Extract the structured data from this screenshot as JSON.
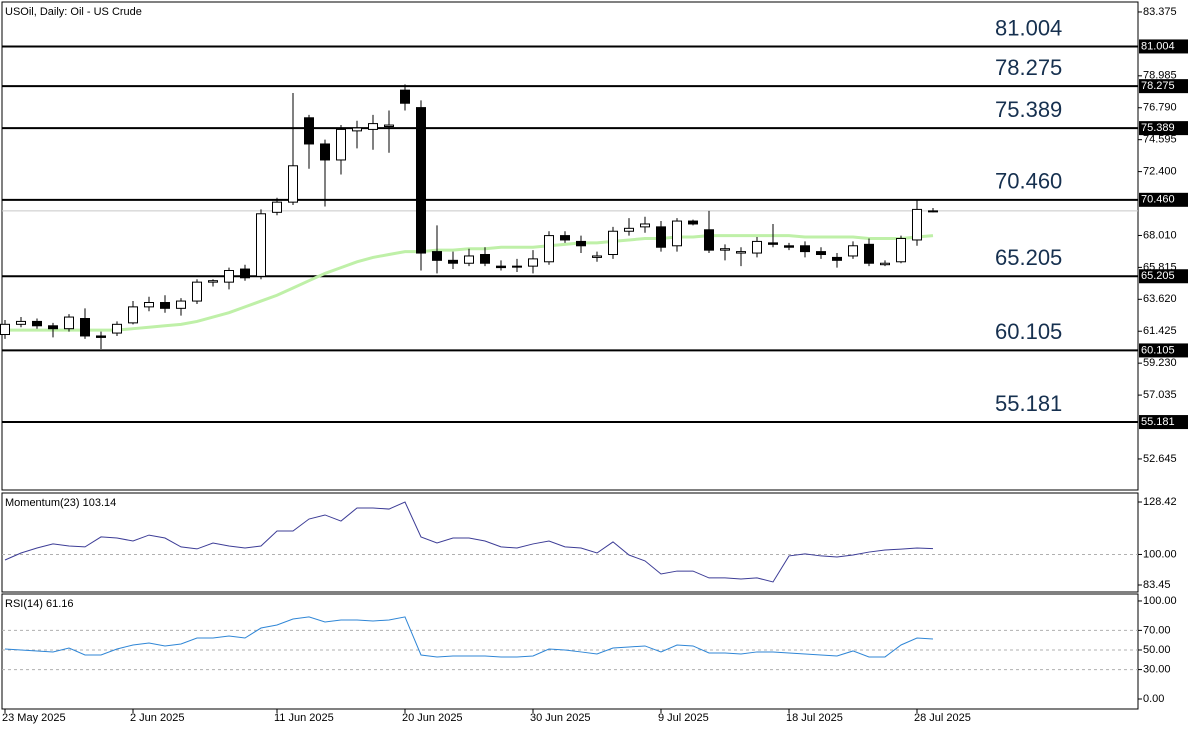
{
  "chart_data": [
    {
      "type": "candlestick",
      "title": "USOil, Daily:  Oil - US Crude",
      "categories": [
        "23 May 2025",
        null,
        null,
        null,
        null,
        null,
        null,
        null,
        "2 Jun 2025",
        null,
        null,
        null,
        null,
        null,
        null,
        null,
        null,
        "11 Jun 2025",
        null,
        null,
        null,
        null,
        null,
        null,
        null,
        "20 Jun 2025",
        null,
        null,
        null,
        null,
        null,
        null,
        null,
        "30 Jun 2025",
        null,
        null,
        null,
        null,
        null,
        null,
        null,
        "9 Jul 2025",
        null,
        null,
        null,
        null,
        null,
        null,
        null,
        "18 Jul 2025",
        null,
        null,
        null,
        null,
        null,
        null,
        null,
        "28 Jul 2025",
        null
      ],
      "open": [
        61.2,
        61.9,
        62.1,
        61.8,
        61.6,
        62.3,
        61.1,
        61.3,
        62.0,
        63.1,
        63.4,
        63.0,
        63.5,
        64.8,
        64.8,
        65.7,
        65.2,
        69.6,
        70.3,
        76.1,
        74.3,
        73.2,
        75.2,
        75.3,
        75.5,
        78.0,
        76.8,
        66.9,
        66.3,
        66.1,
        66.7,
        65.9,
        65.9,
        65.9,
        66.2,
        68.0,
        67.6,
        66.5,
        66.7,
        68.3,
        68.6,
        68.6,
        67.3,
        69.0,
        68.4,
        67.0,
        66.8,
        66.8,
        67.5,
        67.3,
        67.3,
        66.9,
        66.5,
        66.6,
        67.4,
        66.0,
        66.2,
        67.7,
        69.7
      ],
      "high": [
        62.2,
        62.4,
        62.3,
        62.0,
        62.6,
        63.0,
        61.4,
        62.1,
        63.5,
        63.8,
        63.9,
        63.7,
        65.0,
        65.0,
        65.8,
        66.0,
        69.8,
        70.6,
        77.8,
        76.3,
        74.6,
        75.6,
        75.9,
        76.3,
        76.6,
        78.4,
        77.3,
        68.7,
        66.9,
        67.1,
        67.2,
        66.3,
        66.4,
        67.0,
        68.3,
        68.3,
        68.0,
        66.9,
        68.6,
        69.2,
        69.3,
        69.0,
        69.2,
        69.1,
        69.7,
        67.4,
        67.2,
        67.9,
        68.8,
        67.5,
        67.6,
        67.2,
        66.8,
        67.6,
        67.8,
        66.3,
        68.0,
        70.5,
        69.9
      ],
      "low": [
        60.9,
        61.7,
        61.6,
        61.0,
        61.4,
        60.9,
        60.2,
        61.1,
        61.9,
        62.8,
        62.7,
        62.5,
        63.3,
        64.5,
        64.3,
        64.9,
        65.0,
        69.4,
        70.1,
        72.6,
        70.0,
        72.2,
        74.0,
        73.9,
        73.7,
        76.6,
        65.6,
        65.4,
        65.7,
        65.9,
        65.9,
        65.6,
        65.5,
        65.4,
        66.0,
        67.5,
        66.8,
        66.2,
        66.4,
        68.0,
        68.2,
        66.9,
        66.9,
        68.7,
        66.8,
        66.3,
        65.9,
        66.5,
        67.2,
        67.0,
        66.5,
        66.4,
        65.8,
        66.4,
        65.9,
        65.9,
        66.1,
        67.3,
        69.6
      ],
      "close": [
        61.9,
        62.1,
        61.8,
        61.6,
        62.4,
        61.1,
        61.0,
        61.9,
        63.1,
        63.4,
        63.0,
        63.5,
        64.8,
        64.9,
        65.6,
        65.1,
        69.5,
        70.3,
        72.8,
        74.3,
        73.2,
        75.3,
        75.4,
        75.7,
        75.6,
        77.1,
        66.8,
        66.3,
        66.1,
        66.6,
        66.1,
        65.8,
        65.9,
        66.4,
        68.0,
        67.7,
        67.3,
        66.6,
        68.3,
        68.5,
        68.8,
        67.2,
        69.0,
        68.8,
        67.0,
        67.1,
        66.9,
        67.6,
        67.4,
        67.2,
        66.9,
        66.7,
        66.3,
        67.3,
        66.1,
        66.1,
        67.8,
        69.8,
        69.7
      ],
      "ma_values": [
        61.5,
        61.5,
        61.5,
        61.5,
        61.5,
        61.5,
        61.5,
        61.5,
        61.6,
        61.7,
        61.8,
        61.9,
        62.1,
        62.4,
        62.7,
        63.1,
        63.5,
        63.9,
        64.4,
        64.9,
        65.4,
        65.8,
        66.2,
        66.5,
        66.7,
        66.9,
        66.9,
        67.0,
        67.0,
        67.1,
        67.1,
        67.2,
        67.2,
        67.2,
        67.3,
        67.4,
        67.5,
        67.5,
        67.6,
        67.7,
        67.8,
        67.8,
        67.9,
        67.9,
        68.0,
        68.0,
        68.0,
        68.0,
        68.0,
        68.0,
        67.9,
        67.9,
        67.9,
        67.9,
        67.8,
        67.8,
        67.8,
        67.9,
        68.0
      ],
      "ma_color": "#bff0a8",
      "levels": {
        "values": [
          81.004,
          78.275,
          75.389,
          70.46,
          65.205,
          60.105,
          55.181
        ],
        "value_labels": [
          "81.004",
          "78.275",
          "75.389",
          "70.460",
          "65.205",
          "60.105",
          "55.181"
        ]
      },
      "ylim": [
        50.51,
        84.06
      ],
      "yticks": [
        83.375,
        78.985,
        {
          "value": 76.79,
          "label": "76.790"
        },
        74.595,
        {
          "value": 72.4,
          "label": "72.400"
        },
        {
          "value": 68.01,
          "label": "68.010"
        },
        65.815,
        {
          "value": 63.62,
          "label": "63.620"
        },
        61.425,
        {
          "value": 59.23,
          "label": "59.230"
        },
        57.035,
        52.645
      ]
    },
    {
      "type": "line",
      "title": "Momentum(23) 103.14",
      "color": "#3c3c96",
      "values": [
        97.0,
        100.8,
        103.5,
        105.7,
        104.6,
        104.1,
        109.5,
        108.9,
        107.3,
        110.5,
        108.9,
        104.1,
        103.0,
        106.2,
        104.6,
        103.5,
        104.6,
        112.7,
        112.7,
        119.2,
        121.4,
        118.1,
        125.2,
        125.2,
        124.6,
        128.4,
        109.5,
        106.2,
        108.9,
        108.9,
        107.3,
        104.1,
        103.5,
        105.7,
        107.3,
        104.1,
        103.5,
        100.8,
        106.8,
        99.7,
        96.5,
        89.4,
        91.0,
        91.0,
        87.3,
        87.3,
        86.7,
        87.3,
        85.1,
        99.2,
        100.3,
        99.2,
        98.6,
        99.7,
        101.3,
        102.4,
        102.9,
        103.5,
        103.14
      ],
      "ylim": [
        79.66,
        133.3
      ],
      "yticks": [
        128.42,
        {
          "value": 100,
          "label": "100.00"
        },
        83.45
      ],
      "dashed_levels": [
        100
      ]
    },
    {
      "type": "line",
      "title": "RSI(14) 61.16",
      "color": "#2f86d6",
      "values": [
        51.0,
        50.0,
        49.0,
        48.0,
        52.0,
        44.9,
        44.9,
        51.0,
        55.1,
        57.1,
        54.1,
        56.1,
        62.2,
        62.2,
        64.3,
        62.2,
        72.4,
        75.5,
        81.6,
        83.7,
        78.6,
        80.6,
        80.6,
        79.6,
        80.6,
        83.7,
        44.9,
        42.9,
        43.9,
        43.9,
        43.9,
        42.9,
        42.9,
        43.9,
        51.0,
        50.0,
        48.0,
        45.9,
        52.0,
        53.1,
        54.1,
        48.0,
        55.1,
        54.1,
        46.9,
        46.9,
        45.9,
        48.0,
        48.0,
        46.9,
        45.9,
        44.9,
        43.9,
        49.0,
        42.9,
        42.9,
        55.1,
        62.2,
        61.16
      ],
      "ylim": [
        -10.2,
        107.1
      ],
      "yticks": [
        {
          "value": 100,
          "label": "100.00"
        },
        {
          "value": 70,
          "label": "70.00"
        },
        {
          "value": 50,
          "label": "50.00"
        },
        {
          "value": 30,
          "label": "30.00"
        },
        {
          "value": 0,
          "label": "0.00"
        }
      ],
      "dashed_levels": [
        70,
        50,
        30
      ]
    }
  ]
}
